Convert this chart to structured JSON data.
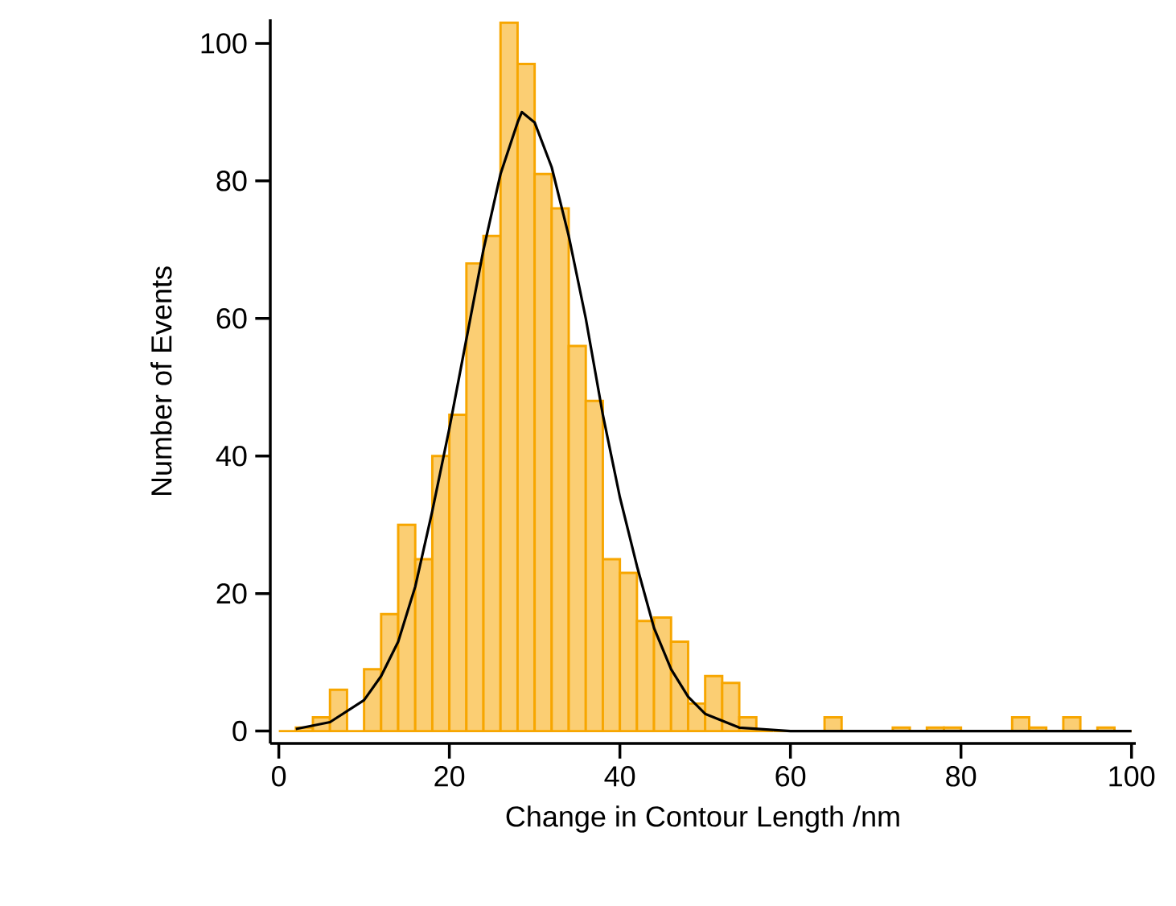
{
  "chart_data": {
    "type": "histogram",
    "xlabel": "Change in Contour Length /nm",
    "ylabel": "Number of Events",
    "xlim": [
      -1,
      100.5
    ],
    "ylim": [
      -1.8,
      103.5
    ],
    "xticks": [
      0,
      20,
      40,
      60,
      80,
      100
    ],
    "yticks": [
      0,
      20,
      40,
      60,
      80,
      100
    ],
    "grid": false,
    "series": [
      {
        "color": "#f7a600",
        "bins": [
          0,
          2,
          4,
          6,
          8,
          10,
          12,
          14,
          16,
          18,
          20,
          22,
          24,
          26,
          28,
          30,
          32,
          34,
          36,
          38,
          40,
          42,
          44,
          46,
          48,
          50,
          52,
          54,
          56,
          58,
          60,
          62,
          64,
          66,
          68,
          70,
          72,
          74,
          76,
          78,
          80,
          82,
          84,
          86,
          88,
          90,
          92,
          94,
          96,
          98,
          100
        ],
        "values": [
          0,
          0.5,
          2,
          6,
          0,
          9,
          17,
          30,
          25,
          40,
          46,
          68,
          72,
          103,
          97,
          81,
          76,
          56,
          48,
          25,
          23,
          16,
          16.5,
          13,
          4,
          8,
          7,
          2,
          0,
          0,
          0,
          0,
          2,
          0,
          0,
          0,
          0.5,
          0,
          0.5,
          0.5,
          0,
          0,
          0,
          2,
          0.5,
          0,
          2,
          0,
          0.5,
          0
        ]
      },
      {
        "type": "line",
        "color": "#000000",
        "x": [
          2,
          6,
          10,
          12,
          14,
          16,
          18,
          20,
          22,
          24,
          26,
          28,
          28.5,
          30,
          32,
          34,
          36,
          38,
          40,
          42,
          44,
          46,
          48,
          50,
          54,
          60,
          70,
          100
        ],
        "values": [
          0.3,
          1.3,
          4.5,
          8,
          13,
          21,
          32,
          44,
          57,
          70,
          81,
          88.5,
          90,
          88.5,
          82,
          72,
          60,
          46,
          34,
          24,
          15,
          9,
          5,
          2.5,
          0.5,
          0,
          0,
          0
        ]
      }
    ]
  }
}
